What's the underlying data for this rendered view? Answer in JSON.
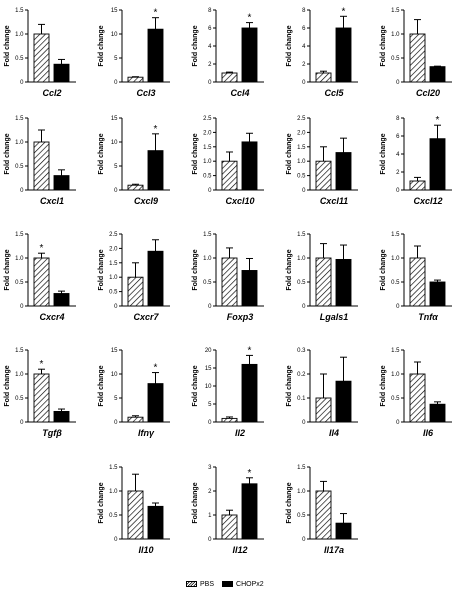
{
  "figure": {
    "ylabel": "Fold change",
    "legend": [
      {
        "label": "PBS",
        "pattern": "hatched",
        "color": "#000000"
      },
      {
        "label": "CHOPx2",
        "pattern": "solid",
        "color": "#000000"
      }
    ]
  },
  "chart_data": [
    {
      "type": "bar",
      "gene": "Ccl2",
      "categories": [
        "PBS",
        "CHOPx2"
      ],
      "values": [
        1.0,
        0.37
      ],
      "errors": [
        0.2,
        0.1
      ],
      "ylim": [
        0,
        1.5
      ],
      "yticks": [
        0,
        0.5,
        1.0,
        1.5
      ],
      "tick_labels": [
        "0",
        "0.5",
        "1.0",
        "1.5"
      ],
      "significant": false,
      "ylabel": "Fold change"
    },
    {
      "type": "bar",
      "gene": "Ccl3",
      "categories": [
        "PBS",
        "CHOPx2"
      ],
      "values": [
        1.0,
        11.0
      ],
      "errors": [
        0.1,
        2.4
      ],
      "ylim": [
        0,
        15
      ],
      "yticks": [
        0,
        5,
        10,
        15
      ],
      "tick_labels": [
        "0",
        "5",
        "10",
        "15"
      ],
      "significant": true,
      "ylabel": "Fold change"
    },
    {
      "type": "bar",
      "gene": "Ccl4",
      "categories": [
        "PBS",
        "CHOPx2"
      ],
      "values": [
        1.0,
        6.0
      ],
      "errors": [
        0.1,
        0.6
      ],
      "ylim": [
        0,
        8
      ],
      "yticks": [
        0,
        2,
        4,
        6,
        8
      ],
      "tick_labels": [
        "0",
        "2",
        "4",
        "6",
        "8"
      ],
      "significant": true,
      "ylabel": "Fold change"
    },
    {
      "type": "bar",
      "gene": "Ccl5",
      "categories": [
        "PBS",
        "CHOPx2"
      ],
      "values": [
        1.0,
        6.0
      ],
      "errors": [
        0.2,
        1.3
      ],
      "ylim": [
        0,
        8
      ],
      "yticks": [
        0,
        2,
        4,
        6,
        8
      ],
      "tick_labels": [
        "0",
        "2",
        "4",
        "6",
        "8"
      ],
      "significant": true,
      "ylabel": "Fold change"
    },
    {
      "type": "bar",
      "gene": "Ccl20",
      "categories": [
        "PBS",
        "CHOPx2"
      ],
      "values": [
        1.0,
        0.32
      ],
      "errors": [
        0.3,
        0.01
      ],
      "ylim": [
        0,
        1.5
      ],
      "yticks": [
        0,
        0.5,
        1.0,
        1.5
      ],
      "tick_labels": [
        "0",
        "0.5",
        "1.0",
        "1.5"
      ],
      "significant": false,
      "ylabel": "Fold change"
    },
    {
      "type": "bar",
      "gene": "Cxcl1",
      "categories": [
        "PBS",
        "CHOPx2"
      ],
      "values": [
        1.0,
        0.3
      ],
      "errors": [
        0.25,
        0.12
      ],
      "ylim": [
        0,
        1.5
      ],
      "yticks": [
        0,
        0.5,
        1.0,
        1.5
      ],
      "tick_labels": [
        "0",
        "0.5",
        "1.0",
        "1.5"
      ],
      "significant": false,
      "ylabel": "Fold change"
    },
    {
      "type": "bar",
      "gene": "Cxcl9",
      "categories": [
        "PBS",
        "CHOPx2"
      ],
      "values": [
        1.0,
        8.2
      ],
      "errors": [
        0.2,
        3.5
      ],
      "ylim": [
        0,
        15
      ],
      "yticks": [
        0,
        5,
        10,
        15
      ],
      "tick_labels": [
        "0",
        "5",
        "10",
        "15"
      ],
      "significant": true,
      "ylabel": "Fold change"
    },
    {
      "type": "bar",
      "gene": "Cxcl10",
      "categories": [
        "PBS",
        "CHOPx2"
      ],
      "values": [
        1.0,
        1.67
      ],
      "errors": [
        0.32,
        0.3
      ],
      "ylim": [
        0,
        2.5
      ],
      "yticks": [
        0,
        0.5,
        1.0,
        1.5,
        2.0,
        2.5
      ],
      "tick_labels": [
        "0",
        "0.5",
        "1.0",
        "1.5",
        "2.0",
        "2.5"
      ],
      "significant": false,
      "ylabel": "Fold change"
    },
    {
      "type": "bar",
      "gene": "Cxcl11",
      "categories": [
        "PBS",
        "CHOPx2"
      ],
      "values": [
        1.0,
        1.3
      ],
      "errors": [
        0.5,
        0.5
      ],
      "ylim": [
        0,
        2.5
      ],
      "yticks": [
        0,
        0.5,
        1.0,
        1.5,
        2.0,
        2.5
      ],
      "tick_labels": [
        "0",
        "0.5",
        "1.0",
        "1.5",
        "2.0",
        "2.5"
      ],
      "significant": false,
      "ylabel": "Fold change"
    },
    {
      "type": "bar",
      "gene": "Cxcl12",
      "categories": [
        "PBS",
        "CHOPx2"
      ],
      "values": [
        1.0,
        5.7
      ],
      "errors": [
        0.4,
        1.5
      ],
      "ylim": [
        0,
        8
      ],
      "yticks": [
        0,
        2,
        4,
        6,
        8
      ],
      "tick_labels": [
        "0",
        "2",
        "4",
        "6",
        "8"
      ],
      "significant": true,
      "ylabel": "Fold change"
    },
    {
      "type": "bar",
      "gene": "Cxcr4",
      "categories": [
        "PBS",
        "CHOPx2"
      ],
      "values": [
        1.0,
        0.26
      ],
      "errors": [
        0.1,
        0.05
      ],
      "ylim": [
        0,
        1.5
      ],
      "yticks": [
        0,
        0.5,
        1.0,
        1.5
      ],
      "tick_labels": [
        "0",
        "0.5",
        "1.0",
        "1.5"
      ],
      "significant": true,
      "ylabel": "Fold change"
    },
    {
      "type": "bar",
      "gene": "Cxcr7",
      "categories": [
        "PBS",
        "CHOPx2"
      ],
      "values": [
        1.0,
        1.9
      ],
      "errors": [
        0.5,
        0.4
      ],
      "ylim": [
        0,
        2.5
      ],
      "yticks": [
        0,
        0.5,
        1.0,
        1.5,
        2.0,
        2.5
      ],
      "tick_labels": [
        "0",
        "0.5",
        "1.0",
        "1.5",
        "2.0",
        "2.5"
      ],
      "significant": false,
      "ylabel": "Fold change"
    },
    {
      "type": "bar",
      "gene": "Foxp3",
      "categories": [
        "PBS",
        "CHOPx2"
      ],
      "values": [
        1.0,
        0.74
      ],
      "errors": [
        0.21,
        0.25
      ],
      "ylim": [
        0,
        1.5
      ],
      "yticks": [
        0,
        0.5,
        1.0,
        1.5
      ],
      "tick_labels": [
        "0",
        "0.5",
        "1.0",
        "1.5"
      ],
      "significant": false,
      "ylabel": "Fold change"
    },
    {
      "type": "bar",
      "gene": "Lgals1",
      "categories": [
        "PBS",
        "CHOPx2"
      ],
      "values": [
        1.0,
        0.97
      ],
      "errors": [
        0.3,
        0.3
      ],
      "ylim": [
        0,
        1.5
      ],
      "yticks": [
        0,
        0.5,
        1.0,
        1.5
      ],
      "tick_labels": [
        "0",
        "0.5",
        "1.0",
        "1.5"
      ],
      "significant": false,
      "ylabel": "Fold change"
    },
    {
      "type": "bar",
      "gene": "Tnfα",
      "categories": [
        "PBS",
        "CHOPx2"
      ],
      "values": [
        1.0,
        0.5
      ],
      "errors": [
        0.25,
        0.04
      ],
      "ylim": [
        0,
        1.5
      ],
      "yticks": [
        0,
        0.5,
        1.0,
        1.5
      ],
      "tick_labels": [
        "0",
        "0.5",
        "1.0",
        "1.5"
      ],
      "significant": false,
      "ylabel": "Fold change"
    },
    {
      "type": "bar",
      "gene": "Tgfβ",
      "categories": [
        "PBS",
        "CHOPx2"
      ],
      "values": [
        1.0,
        0.22
      ],
      "errors": [
        0.1,
        0.05
      ],
      "ylim": [
        0,
        1.5
      ],
      "yticks": [
        0,
        0.5,
        1.0,
        1.5
      ],
      "tick_labels": [
        "0",
        "0.5",
        "1.0",
        "1.5"
      ],
      "significant": true,
      "ylabel": "Fold change"
    },
    {
      "type": "bar",
      "gene": "Ifnγ",
      "categories": [
        "PBS",
        "CHOPx2"
      ],
      "values": [
        1.0,
        8.0
      ],
      "errors": [
        0.3,
        2.3
      ],
      "ylim": [
        0,
        15
      ],
      "yticks": [
        0,
        5,
        10,
        15
      ],
      "tick_labels": [
        "0",
        "5",
        "10",
        "15"
      ],
      "significant": true,
      "ylabel": "Fold change"
    },
    {
      "type": "bar",
      "gene": "Il2",
      "categories": [
        "PBS",
        "CHOPx2"
      ],
      "values": [
        1.0,
        16.0
      ],
      "errors": [
        0.4,
        2.5
      ],
      "ylim": [
        0,
        20
      ],
      "yticks": [
        0,
        5,
        10,
        15,
        20
      ],
      "tick_labels": [
        "0",
        "5",
        "10",
        "15",
        "20"
      ],
      "significant": true,
      "ylabel": "Fold change"
    },
    {
      "type": "bar",
      "gene": "Il4",
      "categories": [
        "PBS",
        "CHOPx2"
      ],
      "values": [
        0.1,
        0.17
      ],
      "errors": [
        0.1,
        0.1
      ],
      "ylim": [
        0,
        0.3
      ],
      "yticks": [
        0,
        0.1,
        0.2,
        0.3
      ],
      "tick_labels": [
        "0",
        "0.1",
        "0.2",
        "0.3"
      ],
      "significant": false,
      "ylabel": "Fold change"
    },
    {
      "type": "bar",
      "gene": "Il6",
      "categories": [
        "PBS",
        "CHOPx2"
      ],
      "values": [
        1.0,
        0.37
      ],
      "errors": [
        0.25,
        0.05
      ],
      "ylim": [
        0,
        1.5
      ],
      "yticks": [
        0,
        0.5,
        1.0,
        1.5
      ],
      "tick_labels": [
        "0",
        "0.5",
        "1.0",
        "1.5"
      ],
      "significant": false,
      "ylabel": "Fold change"
    },
    {
      "type": "bar",
      "gene": "Il10",
      "categories": [
        "PBS",
        "CHOPx2"
      ],
      "values": [
        1.0,
        0.68
      ],
      "errors": [
        0.35,
        0.07
      ],
      "ylim": [
        0,
        1.5
      ],
      "yticks": [
        0,
        0.5,
        1.0,
        1.5
      ],
      "tick_labels": [
        "0",
        "0.5",
        "1.0",
        "1.5"
      ],
      "significant": false,
      "ylabel": "Fold change"
    },
    {
      "type": "bar",
      "gene": "Il12",
      "categories": [
        "PBS",
        "CHOPx2"
      ],
      "values": [
        1.0,
        2.3
      ],
      "errors": [
        0.2,
        0.25
      ],
      "ylim": [
        0,
        3
      ],
      "yticks": [
        0,
        1,
        2,
        3
      ],
      "tick_labels": [
        "0",
        "1",
        "2",
        "3"
      ],
      "significant": true,
      "ylabel": "Fold change"
    },
    {
      "type": "bar",
      "gene": "Il17a",
      "categories": [
        "PBS",
        "CHOPx2"
      ],
      "values": [
        1.0,
        0.33
      ],
      "errors": [
        0.2,
        0.2
      ],
      "ylim": [
        0,
        1.5
      ],
      "yticks": [
        0,
        0.5,
        1.0,
        1.5
      ],
      "tick_labels": [
        "0",
        "0.5",
        "1.0",
        "1.5"
      ],
      "significant": false,
      "ylabel": "Fold change"
    }
  ]
}
